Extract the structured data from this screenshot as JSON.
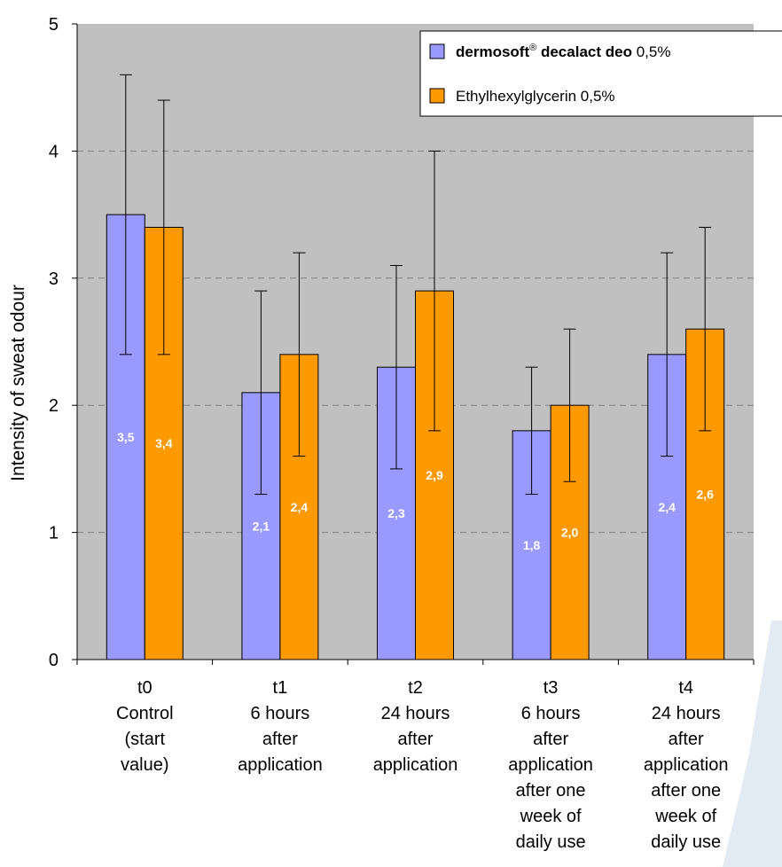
{
  "chart_data": {
    "type": "bar",
    "ylabel": "Intensity of sweat odour",
    "ylim": [
      0,
      5
    ],
    "yticks": [
      0,
      1,
      2,
      3,
      4,
      5
    ],
    "grid": true,
    "legend_position": "top-right",
    "categories": [
      [
        "t0",
        "Control",
        "(start",
        "value)"
      ],
      [
        "t1",
        "6 hours",
        "after",
        "application"
      ],
      [
        "t2",
        "24 hours",
        "after",
        "application"
      ],
      [
        "t3",
        "6 hours",
        "after",
        "application",
        "after one",
        "week of",
        "daily use"
      ],
      [
        "t4",
        "24 hours",
        "after",
        "application",
        "after one",
        "week of",
        "daily use"
      ]
    ],
    "series": [
      {
        "legend_bold": "dermo",
        "legend_rest": "soft",
        "legend_sup": "®",
        "legend_bold2": " decalact deo",
        "legend_suffix": " 0,5%",
        "color": "#9999ff",
        "values": [
          3.5,
          2.1,
          2.3,
          1.8,
          2.4
        ],
        "value_labels": [
          "3,5",
          "2,1",
          "2,3",
          "1,8",
          "2,4"
        ],
        "error_low": [
          2.4,
          1.3,
          1.5,
          1.3,
          1.6
        ],
        "error_high": [
          4.6,
          2.9,
          3.1,
          2.3,
          3.2
        ]
      },
      {
        "name": "Ethylhexylglycerin 0,5%",
        "color": "#ff9900",
        "values": [
          3.4,
          2.4,
          2.9,
          2.0,
          2.6
        ],
        "value_labels": [
          "3,4",
          "2,4",
          "2,9",
          "2,0",
          "2,6"
        ],
        "error_low": [
          2.4,
          1.6,
          1.8,
          1.4,
          1.8
        ],
        "error_high": [
          4.4,
          3.2,
          4.0,
          2.6,
          3.4
        ]
      }
    ]
  },
  "colors": {
    "plot_background": "#c0c0c0",
    "gridline": "#808080",
    "watermark": "#dde6f2"
  }
}
